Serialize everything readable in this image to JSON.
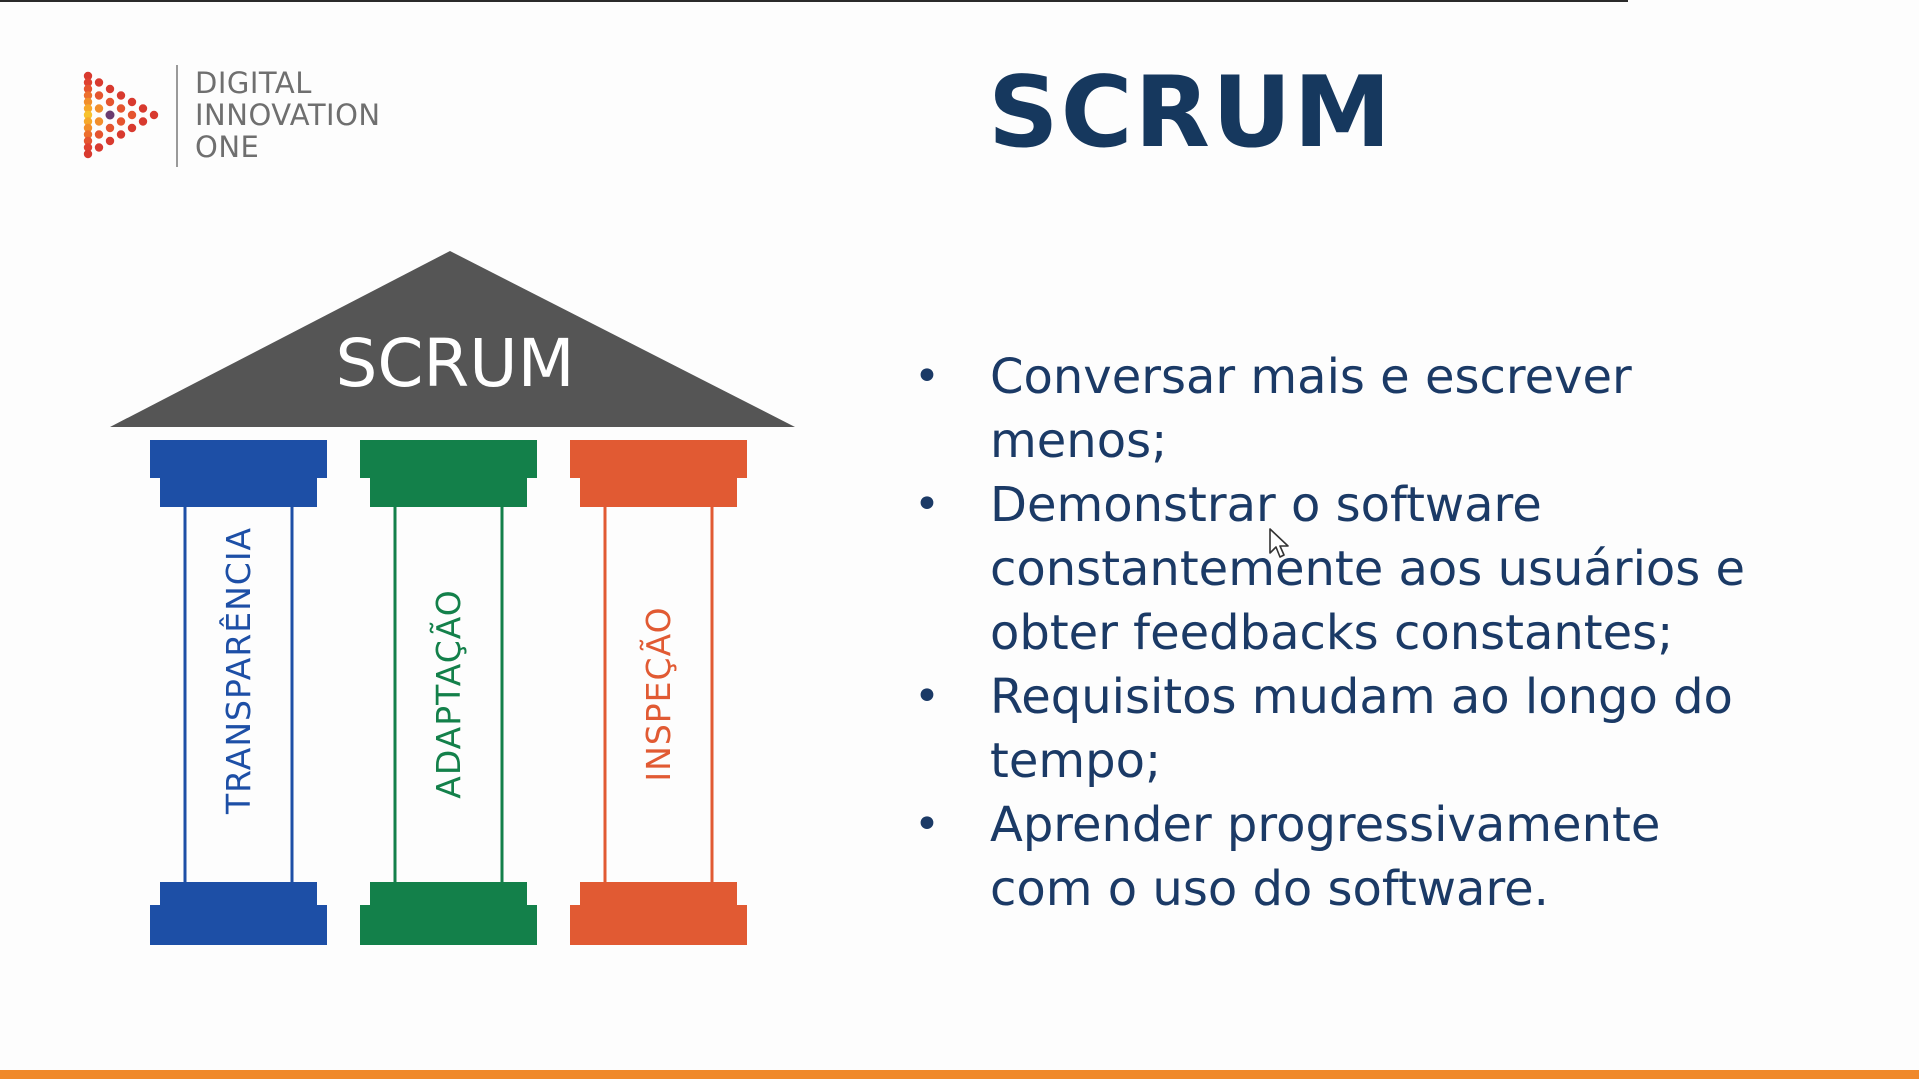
{
  "logo": {
    "line1": "DIGITAL",
    "line2": "INNOVATION",
    "line3": "ONE"
  },
  "title": "SCRUM",
  "temple": {
    "roof_label": "SCRUM",
    "pillars": [
      {
        "label": "TRANSPARÊNCIA",
        "color": "#1d4fa6"
      },
      {
        "label": "ADAPTAÇÃO",
        "color": "#13804a"
      },
      {
        "label": "INSPEÇÃO",
        "color": "#e15a33"
      }
    ],
    "roof_color": "#555555"
  },
  "bullets": [
    {
      "text": "Conversar mais e escrever menos;"
    },
    {
      "text": "Demonstrar o software constantemente aos usuários e obter feedbacks constantes;"
    },
    {
      "text": "Requisitos mudam ao longo do tempo;"
    },
    {
      "text": "Aprender progressivamente com o uso do software."
    }
  ],
  "bullet_glyph": "•",
  "colors": {
    "title": "#16385e",
    "body_text": "#1b3a66",
    "accent_bar": "#f0892a"
  },
  "icons": {
    "logo": "dotted-play-triangle-icon",
    "cursor": "mouse-pointer-icon"
  }
}
